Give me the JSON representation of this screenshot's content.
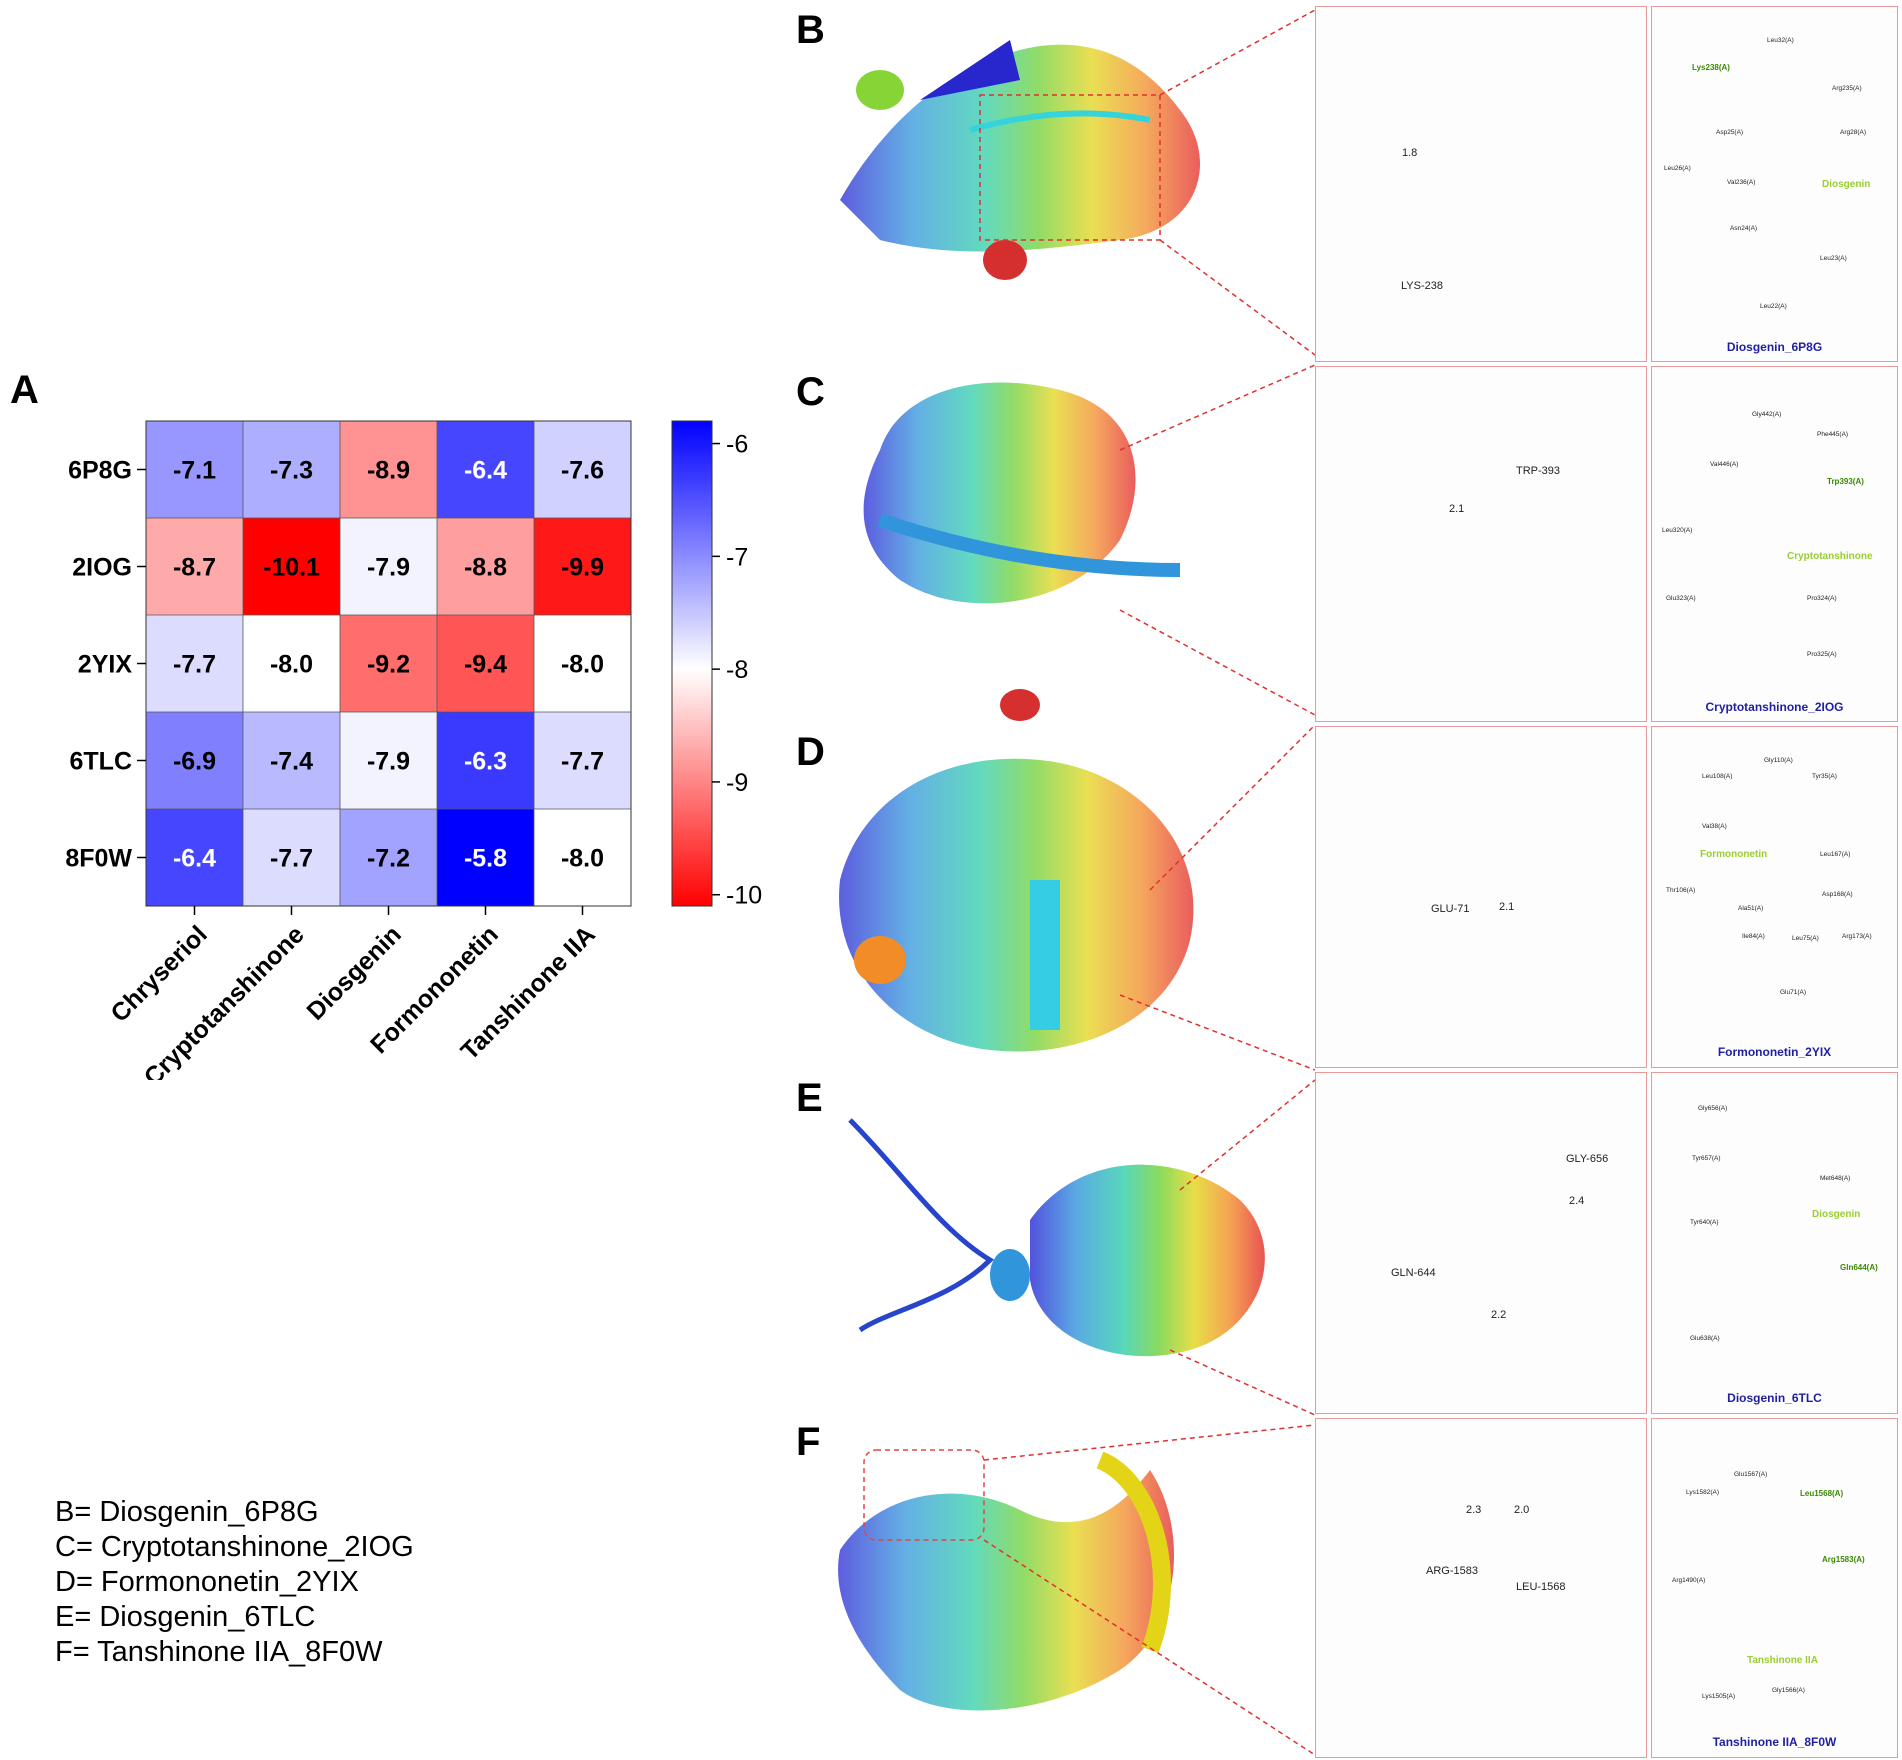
{
  "panel_labels": {
    "A": "A",
    "B": "B",
    "C": "C",
    "D": "D",
    "E": "E",
    "F": "F"
  },
  "chart_data": {
    "type": "heatmap",
    "rows": [
      "6P8G",
      "2IOG",
      "2YIX",
      "6TLC",
      "8F0W"
    ],
    "columns": [
      "Chryseriol",
      "Cryptotanshinone",
      "Diosgenin",
      "Formononetin",
      "Tanshinone IIA"
    ],
    "values": [
      [
        -7.1,
        -7.3,
        -8.9,
        -6.4,
        -7.6
      ],
      [
        -8.7,
        -10.1,
        -7.9,
        -8.8,
        -9.9
      ],
      [
        -7.7,
        -8.0,
        -9.2,
        -9.4,
        -8.0
      ],
      [
        -6.9,
        -7.4,
        -7.9,
        -6.3,
        -7.7
      ],
      [
        -6.4,
        -7.7,
        -7.2,
        -5.8,
        -8.0
      ]
    ],
    "colorbar": {
      "min": -10.1,
      "max": -5.8,
      "ticks": [
        "-6",
        "-7",
        "-8",
        "-9",
        "-10"
      ],
      "low_color": "#ff0000",
      "mid_color": "#ffffff",
      "high_color": "#0000ff"
    }
  },
  "legend_items": [
    "B= Diosgenin_6P8G",
    "C= Cryptotanshinone_2IOG",
    "D= Formononetin_2YIX",
    "E= Diosgenin_6TLC",
    "F= Tanshinone IIA_8F0W"
  ],
  "panels": [
    {
      "id": "B",
      "zoom_residues": [
        "LYS-238"
      ],
      "distances": [
        "1.8"
      ],
      "caption": "Diosgenin_6P8G",
      "ligand": "Diosgenin",
      "hbond_residues": [
        "Lys238(A)"
      ],
      "residues": [
        "Leu32(A)",
        "Arg235(A)",
        "Asp25(A)",
        "Arg28(A)",
        "Leu26(A)",
        "Val236(A)",
        "Asn24(A)",
        "Leu23(A)",
        "Leu22(A)"
      ]
    },
    {
      "id": "C",
      "zoom_residues": [
        "TRP-393"
      ],
      "distances": [
        "2.1"
      ],
      "caption": "Cryptotanshinone_2IOG",
      "ligand": "Cryptotanshinone",
      "hbond_residues": [
        "Trp393(A)"
      ],
      "residues": [
        "Gly442(A)",
        "Phe445(A)",
        "Val446(A)",
        "Leu320(A)",
        "Glu323(A)",
        "Pro324(A)",
        "Pro325(A)"
      ]
    },
    {
      "id": "D",
      "zoom_residues": [
        "GLU-71"
      ],
      "distances": [
        "2.1"
      ],
      "caption": "Formononetin_2YIX",
      "ligand": "Formononetin",
      "hbond_residues": [],
      "residues": [
        "Leu108(A)",
        "Gly110(A)",
        "Tyr35(A)",
        "Val38(A)",
        "Leu167(A)",
        "Thr106(A)",
        "Ala51(A)",
        "Asp168(A)",
        "Ile84(A)",
        "Leu75(A)",
        "Arg173(A)",
        "Glu71(A)"
      ]
    },
    {
      "id": "E",
      "zoom_residues": [
        "GLY-656",
        "GLN-644"
      ],
      "distances": [
        "2.4",
        "2.2"
      ],
      "caption": "Diosgenin_6TLC",
      "ligand": "Diosgenin",
      "hbond_residues": [
        "Gln644(A)"
      ],
      "residues": [
        "Gly656(A)",
        "Tyr657(A)",
        "Met648(A)",
        "Tyr640(A)",
        "Glu638(A)"
      ]
    },
    {
      "id": "F",
      "zoom_residues": [
        "ARG-1583",
        "LEU-1568"
      ],
      "distances": [
        "2.3",
        "2.0"
      ],
      "caption": "Tanshinone IIA_8F0W",
      "ligand": "Tanshinone IIA",
      "hbond_residues": [
        "Leu1568(A)",
        "Arg1583(A)"
      ],
      "residues": [
        "Glu1567(A)",
        "Lys1582(A)",
        "Arg1490(A)",
        "Lys1505(A)",
        "Gly1566(A)"
      ]
    }
  ]
}
